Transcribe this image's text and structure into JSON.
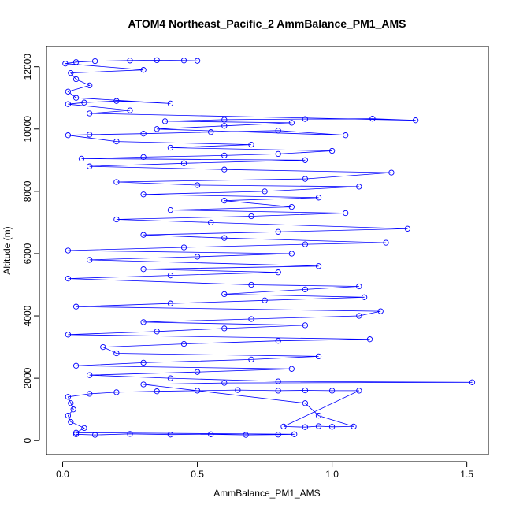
{
  "chart_data": {
    "type": "scatter",
    "title": "ATOM4 Northeast_Pacific_2 AmmBalance_PM1_AMS",
    "xlabel": "AmmBalance_PM1_AMS",
    "ylabel": "Altitude (m)",
    "xlim": [
      -0.06,
      1.58
    ],
    "ylim": [
      -450,
      12650
    ],
    "x_ticks": [
      0,
      0.5,
      1,
      1.5
    ],
    "x_tick_labels": [
      "0.0",
      "0.5",
      "1.0",
      "1.5"
    ],
    "y_ticks": [
      0,
      2000,
      4000,
      6000,
      8000,
      10000,
      12000
    ],
    "y_tick_labels": [
      "0",
      "2000",
      "4000",
      "6000",
      "8000",
      "10000",
      "12000"
    ],
    "series": [
      {
        "color": "#0000ff",
        "marker": "open-circle",
        "connected": true,
        "points": [
          [
            0.05,
            200
          ],
          [
            0.12,
            180
          ],
          [
            0.25,
            210
          ],
          [
            0.4,
            190
          ],
          [
            0.55,
            200
          ],
          [
            0.68,
            180
          ],
          [
            0.8,
            190
          ],
          [
            0.86,
            200
          ],
          [
            0.05,
            250
          ],
          [
            0.08,
            400
          ],
          [
            0.03,
            600
          ],
          [
            0.02,
            800
          ],
          [
            0.04,
            1000
          ],
          [
            0.03,
            1200
          ],
          [
            0.02,
            1400
          ],
          [
            0.1,
            1500
          ],
          [
            0.2,
            1550
          ],
          [
            0.35,
            1580
          ],
          [
            0.5,
            1600
          ],
          [
            0.65,
            1620
          ],
          [
            0.8,
            1600
          ],
          [
            0.9,
            1610
          ],
          [
            1.0,
            1600
          ],
          [
            1.1,
            1600
          ],
          [
            0.82,
            450
          ],
          [
            0.9,
            430
          ],
          [
            0.95,
            460
          ],
          [
            1.0,
            440
          ],
          [
            1.08,
            450
          ],
          [
            0.95,
            800
          ],
          [
            0.9,
            1200
          ],
          [
            0.3,
            1800
          ],
          [
            0.6,
            1850
          ],
          [
            1.52,
            1870
          ],
          [
            0.8,
            1900
          ],
          [
            0.4,
            2000
          ],
          [
            0.1,
            2100
          ],
          [
            0.5,
            2200
          ],
          [
            0.85,
            2300
          ],
          [
            0.05,
            2400
          ],
          [
            0.3,
            2500
          ],
          [
            0.7,
            2600
          ],
          [
            0.95,
            2700
          ],
          [
            0.2,
            2800
          ],
          [
            0.15,
            3000
          ],
          [
            0.45,
            3100
          ],
          [
            0.8,
            3200
          ],
          [
            1.14,
            3250
          ],
          [
            0.02,
            3400
          ],
          [
            0.35,
            3500
          ],
          [
            0.6,
            3600
          ],
          [
            0.9,
            3700
          ],
          [
            0.3,
            3800
          ],
          [
            0.7,
            3900
          ],
          [
            1.1,
            4000
          ],
          [
            1.18,
            4150
          ],
          [
            0.05,
            4300
          ],
          [
            0.4,
            4400
          ],
          [
            0.75,
            4500
          ],
          [
            1.12,
            4600
          ],
          [
            0.6,
            4700
          ],
          [
            0.9,
            4850
          ],
          [
            1.1,
            4950
          ],
          [
            0.7,
            5000
          ],
          [
            0.02,
            5200
          ],
          [
            0.4,
            5300
          ],
          [
            0.8,
            5400
          ],
          [
            0.3,
            5500
          ],
          [
            0.95,
            5600
          ],
          [
            0.1,
            5800
          ],
          [
            0.5,
            5900
          ],
          [
            0.85,
            6000
          ],
          [
            0.02,
            6100
          ],
          [
            0.45,
            6200
          ],
          [
            0.9,
            6300
          ],
          [
            1.2,
            6350
          ],
          [
            0.6,
            6500
          ],
          [
            0.3,
            6600
          ],
          [
            0.8,
            6700
          ],
          [
            1.28,
            6800
          ],
          [
            0.55,
            7000
          ],
          [
            0.2,
            7100
          ],
          [
            0.7,
            7200
          ],
          [
            1.05,
            7300
          ],
          [
            0.4,
            7400
          ],
          [
            0.85,
            7500
          ],
          [
            0.6,
            7700
          ],
          [
            0.95,
            7800
          ],
          [
            0.3,
            7900
          ],
          [
            0.75,
            8000
          ],
          [
            1.1,
            8150
          ],
          [
            0.5,
            8200
          ],
          [
            0.2,
            8300
          ],
          [
            0.9,
            8400
          ],
          [
            1.22,
            8600
          ],
          [
            0.6,
            8700
          ],
          [
            0.1,
            8800
          ],
          [
            0.45,
            8900
          ],
          [
            0.9,
            9000
          ],
          [
            0.07,
            9050
          ],
          [
            0.3,
            9100
          ],
          [
            0.6,
            9150
          ],
          [
            0.8,
            9200
          ],
          [
            1.0,
            9300
          ],
          [
            0.4,
            9400
          ],
          [
            0.7,
            9500
          ],
          [
            0.2,
            9600
          ],
          [
            0.02,
            9800
          ],
          [
            0.1,
            9820
          ],
          [
            0.3,
            9850
          ],
          [
            0.55,
            9900
          ],
          [
            0.8,
            9950
          ],
          [
            1.05,
            9800
          ],
          [
            0.35,
            10000
          ],
          [
            0.6,
            10100
          ],
          [
            0.85,
            10200
          ],
          [
            0.38,
            10250
          ],
          [
            0.6,
            10300
          ],
          [
            0.9,
            10320
          ],
          [
            1.15,
            10330
          ],
          [
            1.31,
            10280
          ],
          [
            0.1,
            10500
          ],
          [
            0.25,
            10600
          ],
          [
            0.02,
            10800
          ],
          [
            0.08,
            10850
          ],
          [
            0.2,
            10900
          ],
          [
            0.4,
            10820
          ],
          [
            0.05,
            11000
          ],
          [
            0.02,
            11200
          ],
          [
            0.1,
            11400
          ],
          [
            0.05,
            11600
          ],
          [
            0.03,
            11800
          ],
          [
            0.3,
            11900
          ],
          [
            0.01,
            12100
          ],
          [
            0.05,
            12150
          ],
          [
            0.12,
            12180
          ],
          [
            0.25,
            12200
          ],
          [
            0.35,
            12210
          ],
          [
            0.45,
            12200
          ],
          [
            0.5,
            12190
          ]
        ]
      }
    ]
  }
}
